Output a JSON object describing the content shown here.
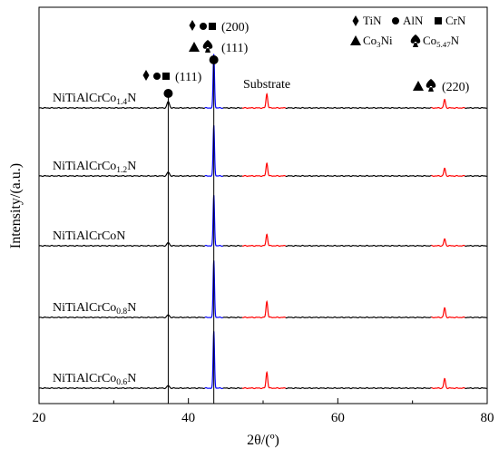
{
  "chart_data": {
    "type": "line",
    "xlabel": "2θ/(º)",
    "ylabel": "Intensity/(a.u.)",
    "xlim": [
      20,
      80
    ],
    "xticks": [
      "20",
      "40",
      "60",
      "80"
    ],
    "grid": false,
    "series": [
      {
        "base": "NiTiAlCrCo",
        "sub": "1.4",
        "tail": "N",
        "peak200": 0.85,
        "peak111": 0.1,
        "sub_peak": 0.22
      },
      {
        "base": "NiTiAlCrCo",
        "sub": "1.2",
        "tail": "N",
        "peak200": 0.8,
        "peak111": 0.06,
        "sub_peak": 0.2
      },
      {
        "base": "NiTiAlCrCo",
        "sub": "",
        "tail": "N",
        "peak200": 0.8,
        "peak111": 0.05,
        "sub_peak": 0.18
      },
      {
        "base": "NiTiAlCrCo",
        "sub": "0.8",
        "tail": "N",
        "peak200": 0.9,
        "peak111": 0.04,
        "sub_peak": 0.25
      },
      {
        "base": "NiTiAlCrCo",
        "sub": "0.6",
        "tail": "N",
        "peak200": 0.9,
        "peak111": 0.04,
        "sub_peak": 0.25
      }
    ],
    "peak_positions": {
      "p111": 37.3,
      "p200": 43.4,
      "sub1": 50.5,
      "sub2": 74.3
    },
    "substrate_ranges": [
      [
        47.2,
        53.0
      ],
      [
        72.5,
        77.0
      ]
    ],
    "colors": {
      "nitride_segment": "#0000ff",
      "substrate_segment": "#ff0000",
      "line": "#000000"
    },
    "annotations": {
      "p200_label": "(200)",
      "p111_label": "(111)",
      "p111_left_label": "(111)",
      "p220_label": "(220)",
      "substrate_label": "Substrate"
    },
    "legend": [
      {
        "symbol": "diamond",
        "text": "TiN"
      },
      {
        "symbol": "circle",
        "text": "AlN"
      },
      {
        "symbol": "square",
        "text": "CrN"
      },
      {
        "symbol": "triangle",
        "text": "Co",
        "sub": "3",
        "tail": "Ni"
      },
      {
        "symbol": "spade",
        "text": "Co",
        "sub": "5.47",
        "tail": "N"
      }
    ]
  }
}
